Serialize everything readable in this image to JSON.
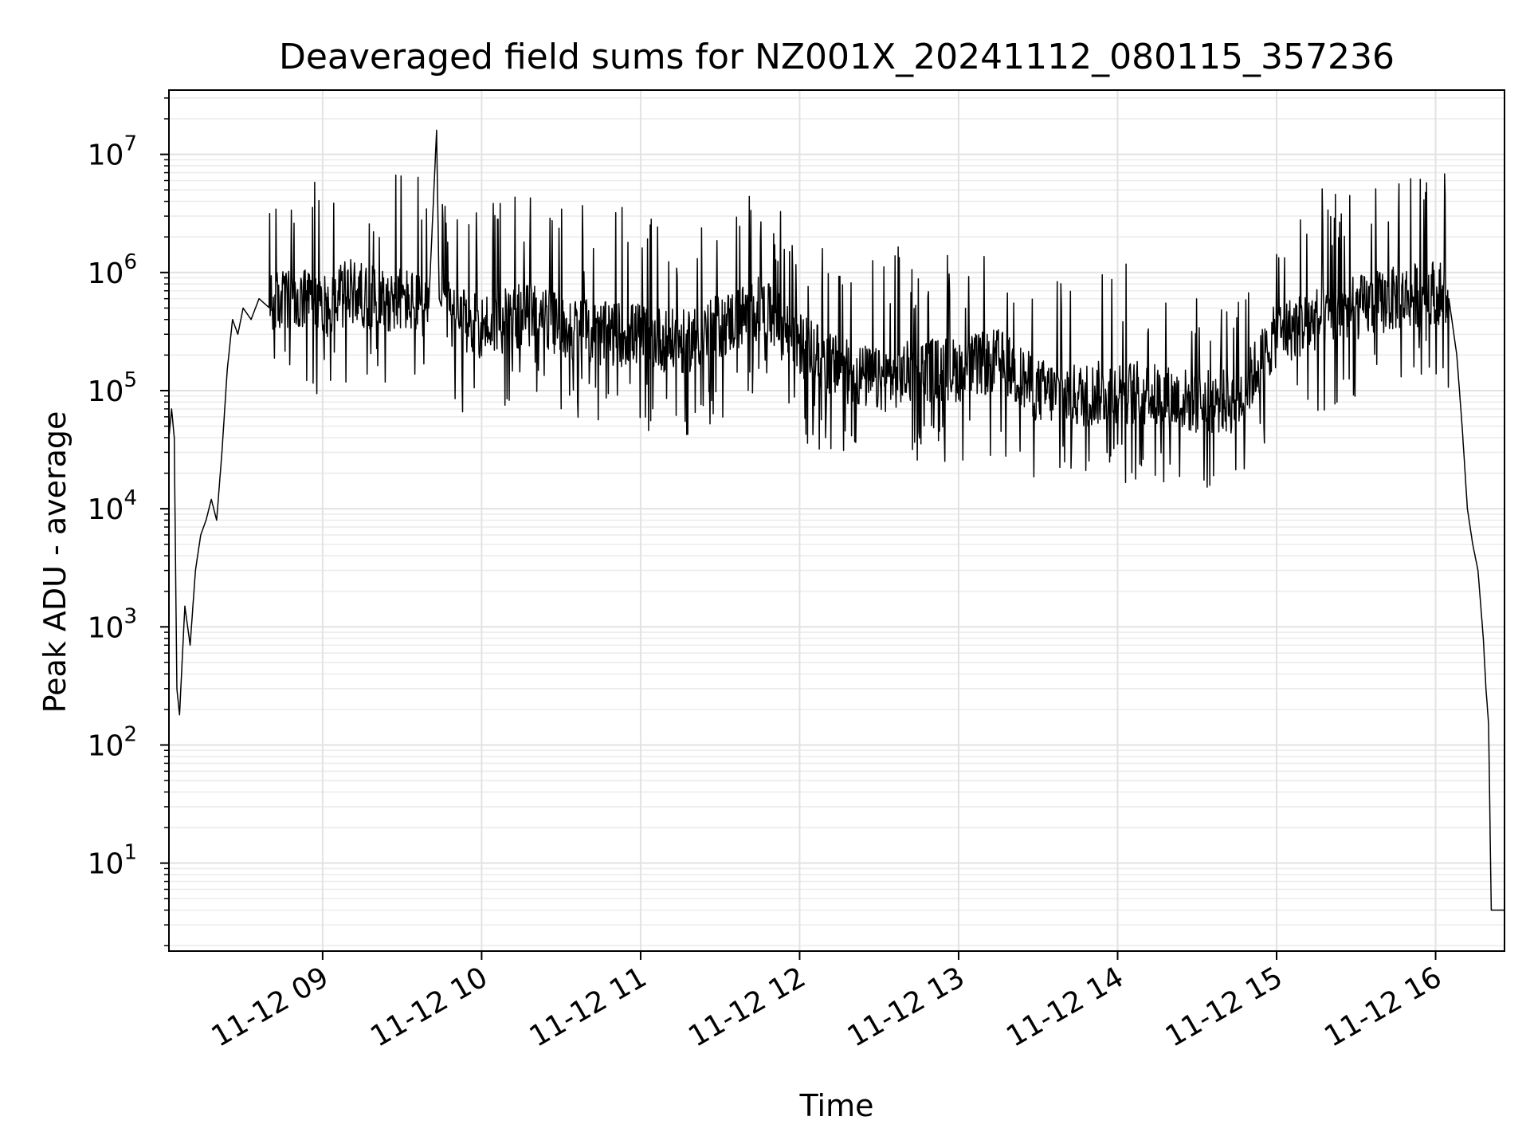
{
  "chart_data": {
    "type": "line",
    "title": "Deaveraged field sums for NZ001X_20241112_080115_357236",
    "xlabel": "Time",
    "ylabel": "Peak ADU - average",
    "y_scale": "log",
    "ylim": [
      1.8,
      35000000
    ],
    "xlim": [
      "2024-11-12 08:02",
      "2024-11-12 16:26"
    ],
    "grid": true,
    "line_color": "#000000",
    "x_ticks": [
      {
        "time": "2024-11-12 09:00",
        "label": "11-12 09"
      },
      {
        "time": "2024-11-12 10:00",
        "label": "11-12 10"
      },
      {
        "time": "2024-11-12 11:00",
        "label": "11-12 11"
      },
      {
        "time": "2024-11-12 12:00",
        "label": "11-12 12"
      },
      {
        "time": "2024-11-12 13:00",
        "label": "11-12 13"
      },
      {
        "time": "2024-11-12 14:00",
        "label": "11-12 14"
      },
      {
        "time": "2024-11-12 15:00",
        "label": "11-12 15"
      },
      {
        "time": "2024-11-12 16:00",
        "label": "11-12 16"
      }
    ],
    "y_ticks": [
      {
        "value": 10,
        "base": "10",
        "exp": "1"
      },
      {
        "value": 100,
        "base": "10",
        "exp": "2"
      },
      {
        "value": 1000,
        "base": "10",
        "exp": "3"
      },
      {
        "value": 10000,
        "base": "10",
        "exp": "4"
      },
      {
        "value": 100000,
        "base": "10",
        "exp": "5"
      },
      {
        "value": 1000000,
        "base": "10",
        "exp": "6"
      },
      {
        "value": 10000000,
        "base": "10",
        "exp": "7"
      }
    ],
    "series": [
      {
        "x": [
          "2024-11-12 08:02",
          "2024-11-12 08:03",
          "2024-11-12 08:04",
          "2024-11-12 08:05",
          "2024-11-12 08:06",
          "2024-11-12 08:08",
          "2024-11-12 08:10",
          "2024-11-12 08:12",
          "2024-11-12 08:14",
          "2024-11-12 08:16",
          "2024-11-12 08:18",
          "2024-11-12 08:20",
          "2024-11-12 08:22",
          "2024-11-12 08:24",
          "2024-11-12 08:26",
          "2024-11-12 08:28",
          "2024-11-12 08:30",
          "2024-11-12 08:33",
          "2024-11-12 08:36",
          "2024-11-12 08:40",
          "2024-11-12 08:45",
          "2024-11-12 08:50",
          "2024-11-12 08:55",
          "2024-11-12 09:00",
          "2024-11-12 09:10",
          "2024-11-12 09:20",
          "2024-11-12 09:30",
          "2024-11-12 09:40",
          "2024-11-12 09:43",
          "2024-11-12 09:44",
          "2024-11-12 09:45",
          "2024-11-12 09:50",
          "2024-11-12 10:00",
          "2024-11-12 10:10",
          "2024-11-12 10:20",
          "2024-11-12 10:30",
          "2024-11-12 10:45",
          "2024-11-12 11:00",
          "2024-11-12 11:15",
          "2024-11-12 11:30",
          "2024-11-12 11:45",
          "2024-11-12 12:00",
          "2024-11-12 12:15",
          "2024-11-12 12:30",
          "2024-11-12 12:45",
          "2024-11-12 13:00",
          "2024-11-12 13:15",
          "2024-11-12 13:30",
          "2024-11-12 13:45",
          "2024-11-12 14:00",
          "2024-11-12 14:15",
          "2024-11-12 14:30",
          "2024-11-12 14:45",
          "2024-11-12 15:00",
          "2024-11-12 15:15",
          "2024-11-12 15:30",
          "2024-11-12 15:45",
          "2024-11-12 16:00",
          "2024-11-12 16:05",
          "2024-11-12 16:08",
          "2024-11-12 16:10",
          "2024-11-12 16:12",
          "2024-11-12 16:14",
          "2024-11-12 16:16",
          "2024-11-12 16:18",
          "2024-11-12 16:19",
          "2024-11-12 16:20",
          "2024-11-12 16:21",
          "2024-11-12 16:22",
          "2024-11-12 16:24",
          "2024-11-12 16:26"
        ],
        "y": [
          40000,
          70000,
          40000,
          300,
          180,
          1500,
          700,
          3000,
          6000,
          8000,
          12000,
          8000,
          30000,
          150000,
          400000,
          300000,
          500000,
          400000,
          600000,
          500000,
          600000,
          500000,
          600000,
          500000,
          700000,
          600000,
          600000,
          500000,
          16000000,
          600000,
          500000,
          400000,
          350000,
          400000,
          450000,
          350000,
          300000,
          300000,
          250000,
          350000,
          500000,
          250000,
          150000,
          120000,
          150000,
          150000,
          180000,
          100000,
          90000,
          100000,
          90000,
          80000,
          80000,
          300000,
          400000,
          500000,
          600000,
          700000,
          600000,
          200000,
          50000,
          10000,
          5000,
          3000,
          800,
          300,
          150,
          4,
          4,
          4,
          4
        ]
      }
    ]
  }
}
